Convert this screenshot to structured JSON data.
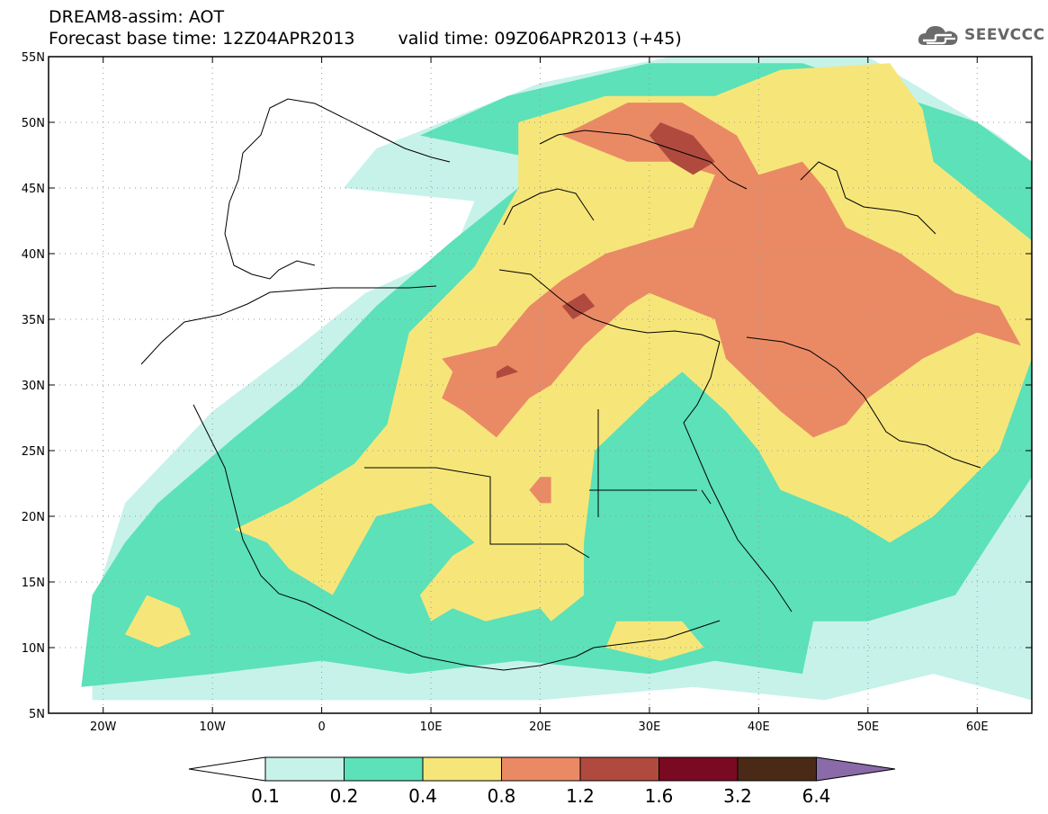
{
  "title": {
    "line1": "DREAM8-assim: AOT",
    "base": "Forecast base time: 12Z04APR2013",
    "valid": "valid time: 09Z06APR2013 (+45)"
  },
  "logo": {
    "text": "SEEVCCC",
    "icon": "cloud-icon",
    "color": "#666666"
  },
  "map": {
    "lon_range": [
      -25,
      65
    ],
    "lat_range": [
      5,
      55
    ],
    "lon_ticks": [
      {
        "value": -20,
        "label": "20W"
      },
      {
        "value": -10,
        "label": "10W"
      },
      {
        "value": 0,
        "label": "0"
      },
      {
        "value": 10,
        "label": "10E"
      },
      {
        "value": 20,
        "label": "20E"
      },
      {
        "value": 30,
        "label": "30E"
      },
      {
        "value": 40,
        "label": "40E"
      },
      {
        "value": 50,
        "label": "50E"
      },
      {
        "value": 60,
        "label": "60E"
      }
    ],
    "lat_ticks": [
      {
        "value": 55,
        "label": "55N"
      },
      {
        "value": 50,
        "label": "50N"
      },
      {
        "value": 45,
        "label": "45N"
      },
      {
        "value": 40,
        "label": "40N"
      },
      {
        "value": 35,
        "label": "35N"
      },
      {
        "value": 30,
        "label": "30N"
      },
      {
        "value": 25,
        "label": "25N"
      },
      {
        "value": 20,
        "label": "20N"
      },
      {
        "value": 15,
        "label": "15N"
      },
      {
        "value": 10,
        "label": "10N"
      },
      {
        "value": 5,
        "label": "5N"
      }
    ],
    "grid": true,
    "regions": [
      {
        "level": 0,
        "name": "aot-0.1-0.2",
        "pts": [
          [
            -21,
            6
          ],
          [
            -21,
            13
          ],
          [
            -18,
            21
          ],
          [
            -10,
            28
          ],
          [
            -2,
            33
          ],
          [
            4,
            37
          ],
          [
            12,
            40
          ],
          [
            14,
            44
          ],
          [
            2,
            45
          ],
          [
            5,
            48
          ],
          [
            20,
            53
          ],
          [
            32,
            55
          ],
          [
            50,
            55
          ],
          [
            62,
            49
          ],
          [
            65,
            47
          ],
          [
            65,
            6
          ],
          [
            56,
            8
          ],
          [
            46,
            6
          ],
          [
            34,
            7
          ],
          [
            20,
            6
          ]
        ]
      },
      {
        "level": 1,
        "name": "aot-0.2-0.4",
        "pts": [
          [
            -22,
            7
          ],
          [
            -21,
            14
          ],
          [
            -18,
            18
          ],
          [
            -15,
            21
          ],
          [
            -8,
            26
          ],
          [
            -2,
            30
          ],
          [
            5,
            36
          ],
          [
            12,
            41
          ],
          [
            21,
            47
          ],
          [
            9,
            49
          ],
          [
            17,
            52
          ],
          [
            30,
            54.5
          ],
          [
            44,
            54.5
          ],
          [
            60,
            50
          ],
          [
            65,
            47
          ],
          [
            65,
            23
          ],
          [
            58,
            14
          ],
          [
            50,
            12
          ],
          [
            45,
            12
          ],
          [
            44,
            8
          ],
          [
            36,
            9
          ],
          [
            30,
            8
          ],
          [
            18,
            9
          ],
          [
            8,
            8
          ],
          [
            0,
            9
          ],
          [
            -10,
            8
          ]
        ]
      },
      {
        "level": 2,
        "name": "aot-0.4-0.8",
        "pts": [
          [
            -18,
            11
          ],
          [
            -16,
            14
          ],
          [
            -13,
            13
          ],
          [
            -12,
            11
          ],
          [
            -15,
            10
          ]
        ]
      },
      {
        "level": 2,
        "name": "aot-0.4-0.8",
        "pts": [
          [
            -8,
            19
          ],
          [
            -3,
            21
          ],
          [
            3,
            24
          ],
          [
            6,
            27
          ],
          [
            8,
            34
          ],
          [
            14,
            39
          ],
          [
            18,
            45
          ],
          [
            18,
            50
          ],
          [
            26,
            52
          ],
          [
            36,
            52
          ],
          [
            42,
            54
          ],
          [
            52,
            54.5
          ],
          [
            55,
            51
          ],
          [
            56,
            47
          ],
          [
            65,
            41
          ],
          [
            65,
            32
          ],
          [
            62,
            25
          ],
          [
            56,
            20
          ],
          [
            52,
            18
          ],
          [
            48,
            20
          ],
          [
            45,
            21
          ],
          [
            42,
            22
          ],
          [
            40,
            25
          ],
          [
            37,
            28
          ],
          [
            33,
            31
          ],
          [
            30,
            29
          ],
          [
            25,
            25
          ],
          [
            24,
            18
          ],
          [
            24,
            14
          ],
          [
            21,
            12
          ],
          [
            20,
            13
          ],
          [
            15,
            12
          ],
          [
            12,
            13
          ],
          [
            10,
            12
          ],
          [
            9,
            14
          ],
          [
            12,
            17
          ],
          [
            14,
            18
          ],
          [
            10,
            21
          ],
          [
            5,
            20
          ],
          [
            3,
            17
          ],
          [
            1,
            14
          ],
          [
            -3,
            16
          ],
          [
            -5,
            18
          ]
        ]
      },
      {
        "level": 2,
        "name": "aot-0.4-0.8",
        "pts": [
          [
            26,
            10
          ],
          [
            27,
            12
          ],
          [
            33,
            12
          ],
          [
            35,
            10
          ],
          [
            31,
            9
          ]
        ]
      },
      {
        "level": 3,
        "name": "aot-0.8-1.2",
        "pts": [
          [
            22,
            49
          ],
          [
            28,
            51.5
          ],
          [
            33,
            51.5
          ],
          [
            38,
            49
          ],
          [
            40,
            46
          ],
          [
            44,
            47
          ],
          [
            46,
            45
          ],
          [
            48,
            42
          ],
          [
            53,
            40
          ],
          [
            58,
            37
          ],
          [
            62,
            36
          ],
          [
            64,
            33
          ],
          [
            60,
            34
          ],
          [
            55,
            32
          ],
          [
            50,
            29
          ],
          [
            48,
            27
          ],
          [
            45,
            26
          ],
          [
            42,
            28
          ],
          [
            37,
            32
          ],
          [
            36,
            35
          ],
          [
            33,
            36
          ],
          [
            30,
            37
          ],
          [
            28,
            36
          ],
          [
            24,
            33
          ],
          [
            21,
            30
          ],
          [
            19,
            29
          ],
          [
            17,
            27
          ],
          [
            16,
            26
          ],
          [
            13,
            28
          ],
          [
            11,
            29
          ],
          [
            12,
            31
          ],
          [
            11,
            32
          ],
          [
            16,
            33
          ],
          [
            19,
            36
          ],
          [
            22,
            38
          ],
          [
            26,
            40
          ],
          [
            30,
            41
          ],
          [
            34,
            42
          ],
          [
            36,
            46
          ],
          [
            32,
            47
          ],
          [
            28,
            47
          ]
        ]
      },
      {
        "level": 3,
        "name": "aot-0.8-1.2",
        "pts": [
          [
            19,
            22
          ],
          [
            20,
            23
          ],
          [
            21,
            23
          ],
          [
            21,
            21
          ],
          [
            20,
            21
          ]
        ]
      },
      {
        "level": 4,
        "name": "aot-1.2-1.6",
        "pts": [
          [
            31,
            50
          ],
          [
            34,
            49
          ],
          [
            36,
            47
          ],
          [
            34,
            46
          ],
          [
            32,
            47
          ],
          [
            30,
            49
          ]
        ]
      },
      {
        "level": 4,
        "name": "aot-1.2-1.6",
        "pts": [
          [
            22,
            36
          ],
          [
            24,
            37
          ],
          [
            25,
            36
          ],
          [
            23,
            35
          ]
        ]
      },
      {
        "level": 4,
        "name": "aot-1.2-1.6",
        "pts": [
          [
            16,
            31
          ],
          [
            17,
            31.5
          ],
          [
            18,
            31
          ],
          [
            16,
            30.5
          ]
        ]
      }
    ]
  },
  "colorbar": {
    "labels": [
      "0.1",
      "0.2",
      "0.4",
      "0.8",
      "1.2",
      "1.6",
      "3.2",
      "6.4"
    ],
    "colors": [
      "#ffffff",
      "#c6f2ea",
      "#5ce1b8",
      "#f6e67a",
      "#ea8a65",
      "#b04a3e",
      "#7a0a22",
      "#4a2a16",
      "#8a6aa9"
    ]
  }
}
